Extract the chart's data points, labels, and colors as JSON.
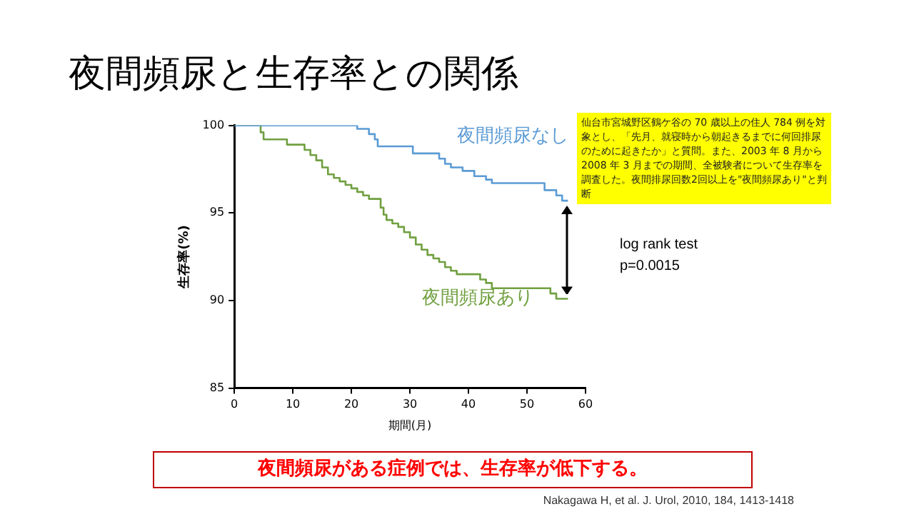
{
  "chart_data": {
    "type": "step",
    "title": "夜間頻尿と生存率との関係",
    "xlabel": "期間(月)",
    "ylabel": "生存率(%)",
    "xlim": [
      0,
      60
    ],
    "xticks": [
      0,
      10,
      20,
      30,
      40,
      50,
      60
    ],
    "ylim": [
      85,
      100
    ],
    "yticks": [
      85,
      90,
      95,
      100
    ],
    "grid": false,
    "legend": false,
    "marker": "none",
    "line_style": "solid",
    "series": [
      {
        "name": "夜間頻尿なし",
        "color": "#5b9bd5",
        "x": [
          0,
          20.5,
          21,
          23,
          24,
          24.5,
          30,
          30.5,
          34,
          35,
          36,
          37,
          39,
          41,
          43,
          44,
          52,
          53,
          55,
          56,
          57
        ],
        "values": [
          100,
          100,
          99.8,
          99.5,
          99.2,
          98.8,
          98.8,
          98.4,
          98.4,
          98.1,
          97.8,
          97.6,
          97.4,
          97.1,
          96.9,
          96.7,
          96.7,
          96.3,
          96.0,
          95.7,
          95.7
        ]
      },
      {
        "name": "夜間頻尿あり",
        "color": "#70a040",
        "x": [
          0,
          4,
          4.5,
          5,
          8,
          9,
          11,
          12,
          13,
          14,
          15,
          16,
          17,
          18,
          19,
          20,
          21,
          22,
          23,
          24.5,
          25,
          25.5,
          26,
          27,
          28,
          29,
          30,
          31,
          32,
          33,
          34,
          35,
          36,
          37,
          38,
          41,
          42,
          43,
          44,
          53,
          54,
          55,
          57
        ],
        "values": [
          100,
          100,
          99.6,
          99.2,
          99.2,
          98.9,
          98.9,
          98.6,
          98.3,
          98.0,
          97.6,
          97.2,
          97.0,
          96.8,
          96.6,
          96.4,
          96.2,
          96.0,
          95.8,
          95.8,
          95.3,
          94.9,
          94.6,
          94.4,
          94.2,
          93.9,
          93.6,
          93.2,
          92.9,
          92.6,
          92.4,
          92.2,
          91.9,
          91.7,
          91.5,
          91.5,
          91.2,
          91.0,
          90.7,
          90.7,
          90.4,
          90.1,
          90.1
        ]
      }
    ],
    "annotations": [
      "仙台市宮城野区鶴ケ谷の 70 歳以上の住人 784 例を対象とし、「先月、就寝時から朝起きるまでに何回排尿のために起きたか」と質問。また、2003 年 8 月から 2008 年 3 月までの期間、全被験者について生存率を調査した。夜間排尿回数2回以上を\"夜間頻尿あり\"と判断",
      "log rank test\np=0.0015",
      "夜間頻尿がある症例では、生存率が低下する。",
      "Nakagawa H, et al. J. Urol, 2010, 184, 1413-1418"
    ]
  }
}
